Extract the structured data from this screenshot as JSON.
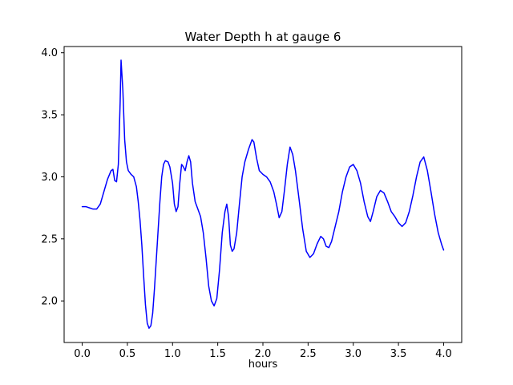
{
  "chart_data": {
    "type": "line",
    "title": "Water Depth h at gauge 6",
    "xlabel": "hours",
    "ylabel": "",
    "xlim": [
      -0.2,
      4.2
    ],
    "ylim": [
      1.665,
      4.05
    ],
    "xticks": [
      0.0,
      0.5,
      1.0,
      1.5,
      2.0,
      2.5,
      3.0,
      3.5,
      4.0
    ],
    "yticks": [
      2.0,
      2.5,
      3.0,
      3.5,
      4.0
    ],
    "grid": false,
    "legend": "none",
    "background": "#ffffff",
    "axis_color": "#000000",
    "series": [
      {
        "name": "water depth h",
        "color": "#0000ff",
        "points": [
          [
            0.0,
            2.76
          ],
          [
            0.04,
            2.76
          ],
          [
            0.08,
            2.75
          ],
          [
            0.12,
            2.74
          ],
          [
            0.16,
            2.74
          ],
          [
            0.2,
            2.78
          ],
          [
            0.24,
            2.88
          ],
          [
            0.28,
            2.98
          ],
          [
            0.32,
            3.05
          ],
          [
            0.34,
            3.06
          ],
          [
            0.36,
            2.97
          ],
          [
            0.38,
            2.96
          ],
          [
            0.4,
            3.1
          ],
          [
            0.42,
            3.6
          ],
          [
            0.43,
            3.94
          ],
          [
            0.45,
            3.7
          ],
          [
            0.47,
            3.3
          ],
          [
            0.49,
            3.12
          ],
          [
            0.51,
            3.05
          ],
          [
            0.54,
            3.02
          ],
          [
            0.57,
            3.0
          ],
          [
            0.6,
            2.92
          ],
          [
            0.62,
            2.8
          ],
          [
            0.64,
            2.65
          ],
          [
            0.66,
            2.45
          ],
          [
            0.68,
            2.2
          ],
          [
            0.7,
            1.97
          ],
          [
            0.72,
            1.82
          ],
          [
            0.74,
            1.78
          ],
          [
            0.76,
            1.8
          ],
          [
            0.78,
            1.9
          ],
          [
            0.8,
            2.1
          ],
          [
            0.83,
            2.45
          ],
          [
            0.86,
            2.8
          ],
          [
            0.88,
            3.0
          ],
          [
            0.9,
            3.1
          ],
          [
            0.92,
            3.13
          ],
          [
            0.95,
            3.12
          ],
          [
            0.97,
            3.08
          ],
          [
            1.0,
            2.95
          ],
          [
            1.02,
            2.78
          ],
          [
            1.04,
            2.72
          ],
          [
            1.06,
            2.76
          ],
          [
            1.08,
            2.95
          ],
          [
            1.1,
            3.1
          ],
          [
            1.12,
            3.08
          ],
          [
            1.14,
            3.05
          ],
          [
            1.16,
            3.12
          ],
          [
            1.18,
            3.17
          ],
          [
            1.2,
            3.12
          ],
          [
            1.22,
            2.95
          ],
          [
            1.25,
            2.8
          ],
          [
            1.28,
            2.74
          ],
          [
            1.31,
            2.68
          ],
          [
            1.34,
            2.55
          ],
          [
            1.37,
            2.35
          ],
          [
            1.4,
            2.12
          ],
          [
            1.43,
            2.0
          ],
          [
            1.46,
            1.96
          ],
          [
            1.49,
            2.02
          ],
          [
            1.52,
            2.25
          ],
          [
            1.55,
            2.55
          ],
          [
            1.58,
            2.72
          ],
          [
            1.6,
            2.78
          ],
          [
            1.62,
            2.68
          ],
          [
            1.64,
            2.45
          ],
          [
            1.66,
            2.4
          ],
          [
            1.68,
            2.42
          ],
          [
            1.71,
            2.55
          ],
          [
            1.74,
            2.78
          ],
          [
            1.77,
            3.0
          ],
          [
            1.8,
            3.12
          ],
          [
            1.84,
            3.22
          ],
          [
            1.88,
            3.3
          ],
          [
            1.9,
            3.28
          ],
          [
            1.93,
            3.15
          ],
          [
            1.96,
            3.05
          ],
          [
            2.0,
            3.02
          ],
          [
            2.04,
            3.0
          ],
          [
            2.08,
            2.96
          ],
          [
            2.12,
            2.88
          ],
          [
            2.15,
            2.78
          ],
          [
            2.18,
            2.67
          ],
          [
            2.21,
            2.72
          ],
          [
            2.24,
            2.9
          ],
          [
            2.27,
            3.1
          ],
          [
            2.3,
            3.24
          ],
          [
            2.33,
            3.18
          ],
          [
            2.36,
            3.05
          ],
          [
            2.4,
            2.82
          ],
          [
            2.44,
            2.58
          ],
          [
            2.48,
            2.4
          ],
          [
            2.52,
            2.35
          ],
          [
            2.56,
            2.38
          ],
          [
            2.6,
            2.46
          ],
          [
            2.64,
            2.52
          ],
          [
            2.67,
            2.5
          ],
          [
            2.7,
            2.44
          ],
          [
            2.73,
            2.43
          ],
          [
            2.76,
            2.48
          ],
          [
            2.8,
            2.6
          ],
          [
            2.84,
            2.72
          ],
          [
            2.88,
            2.88
          ],
          [
            2.92,
            3.0
          ],
          [
            2.96,
            3.08
          ],
          [
            3.0,
            3.1
          ],
          [
            3.04,
            3.05
          ],
          [
            3.08,
            2.95
          ],
          [
            3.12,
            2.8
          ],
          [
            3.16,
            2.68
          ],
          [
            3.19,
            2.64
          ],
          [
            3.22,
            2.72
          ],
          [
            3.26,
            2.84
          ],
          [
            3.3,
            2.89
          ],
          [
            3.34,
            2.87
          ],
          [
            3.38,
            2.8
          ],
          [
            3.42,
            2.72
          ],
          [
            3.46,
            2.68
          ],
          [
            3.5,
            2.63
          ],
          [
            3.54,
            2.6
          ],
          [
            3.58,
            2.63
          ],
          [
            3.62,
            2.72
          ],
          [
            3.66,
            2.85
          ],
          [
            3.7,
            3.0
          ],
          [
            3.74,
            3.12
          ],
          [
            3.78,
            3.16
          ],
          [
            3.82,
            3.05
          ],
          [
            3.86,
            2.88
          ],
          [
            3.9,
            2.7
          ],
          [
            3.94,
            2.55
          ],
          [
            3.98,
            2.45
          ],
          [
            4.0,
            2.41
          ]
        ]
      }
    ]
  }
}
